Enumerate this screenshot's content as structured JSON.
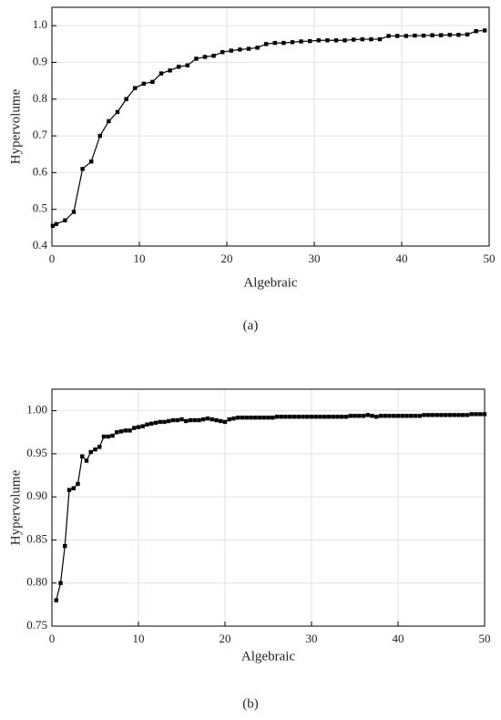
{
  "chart_data": [
    {
      "type": "line",
      "xlabel": "Algebraic",
      "ylabel": "Hypervolume",
      "caption": "(a)",
      "color": "#000000",
      "grid": true,
      "xlim": [
        0,
        50
      ],
      "ylim": [
        0.4,
        1.05
      ],
      "xticks": [
        0,
        10,
        20,
        30,
        40,
        50
      ],
      "yticks": [
        0.4,
        0.5,
        0.6,
        0.7,
        0.8,
        0.9,
        {
          "value": 1.0,
          "label": "1.0"
        }
      ],
      "x": [
        0.1,
        0.5,
        1.5,
        2.5,
        3.5,
        4.5,
        5.5,
        6.5,
        7.5,
        8.5,
        9.5,
        10.5,
        11.5,
        12.5,
        13.5,
        14.5,
        15.5,
        16.5,
        17.5,
        18.5,
        19.5,
        20.5,
        21.5,
        22.5,
        23.5,
        24.5,
        25.5,
        26.5,
        27.5,
        28.5,
        29.5,
        30.5,
        31.5,
        32.5,
        33.5,
        34.5,
        35.5,
        36.5,
        37.5,
        38.5,
        39.5,
        40.5,
        41.5,
        42.5,
        43.5,
        44.5,
        45.5,
        46.5,
        47.5,
        48.5,
        49.5
      ],
      "values": [
        0.455,
        0.46,
        0.47,
        0.493,
        0.61,
        0.63,
        0.7,
        0.74,
        0.765,
        0.8,
        0.83,
        0.842,
        0.847,
        0.87,
        0.878,
        0.888,
        0.892,
        0.91,
        0.915,
        0.918,
        0.928,
        0.932,
        0.935,
        0.937,
        0.94,
        0.95,
        0.953,
        0.953,
        0.955,
        0.957,
        0.958,
        0.96,
        0.96,
        0.96,
        0.96,
        0.962,
        0.963,
        0.963,
        0.963,
        0.972,
        0.972,
        0.972,
        0.973,
        0.973,
        0.974,
        0.974,
        0.975,
        0.975,
        0.976,
        0.985,
        0.987
      ]
    },
    {
      "type": "line",
      "xlabel": "Algebraic",
      "ylabel": "Hypervolume",
      "caption": "(b)",
      "color": "#000000",
      "grid": true,
      "xlim": [
        0,
        50
      ],
      "ylim": [
        0.75,
        1.025
      ],
      "xticks": [
        0,
        10,
        20,
        30,
        40,
        50
      ],
      "yticks": [
        0.75,
        {
          "value": 0.8,
          "label": "0.80"
        },
        0.85,
        {
          "value": 0.9,
          "label": "0.90"
        },
        0.95,
        {
          "value": 1.0,
          "label": "1.00"
        }
      ],
      "x": [
        0.5,
        1,
        1.5,
        2,
        2.5,
        3,
        3.5,
        4,
        4.5,
        5,
        5.5,
        6,
        6.5,
        7,
        7.5,
        8,
        8.5,
        9,
        9.5,
        10,
        10.5,
        11,
        11.5,
        12,
        12.5,
        13,
        13.5,
        14,
        14.5,
        15,
        15.5,
        16,
        16.5,
        17,
        17.5,
        18,
        18.5,
        19,
        19.5,
        20,
        20.5,
        21,
        21.5,
        22,
        22.5,
        23,
        23.5,
        24,
        24.5,
        25,
        25.5,
        26,
        26.5,
        27,
        27.5,
        28,
        28.5,
        29,
        29.5,
        30,
        30.5,
        31,
        31.5,
        32,
        32.5,
        33,
        33.5,
        34,
        34.5,
        35,
        35.5,
        36,
        36.5,
        37,
        37.5,
        38,
        38.5,
        39,
        39.5,
        40,
        40.5,
        41,
        41.5,
        42,
        42.5,
        43,
        43.5,
        44,
        44.5,
        45,
        45.5,
        46,
        46.5,
        47,
        47.5,
        48,
        48.5,
        49,
        49.5,
        50
      ],
      "values": [
        0.78,
        0.8,
        0.843,
        0.908,
        0.91,
        0.915,
        0.947,
        0.942,
        0.952,
        0.955,
        0.958,
        0.97,
        0.97,
        0.971,
        0.975,
        0.976,
        0.977,
        0.977,
        0.98,
        0.981,
        0.982,
        0.984,
        0.985,
        0.986,
        0.987,
        0.987,
        0.988,
        0.989,
        0.989,
        0.99,
        0.988,
        0.989,
        0.989,
        0.989,
        0.99,
        0.991,
        0.99,
        0.989,
        0.988,
        0.987,
        0.99,
        0.991,
        0.992,
        0.992,
        0.992,
        0.992,
        0.992,
        0.992,
        0.992,
        0.992,
        0.992,
        0.993,
        0.993,
        0.993,
        0.993,
        0.993,
        0.993,
        0.993,
        0.993,
        0.993,
        0.993,
        0.993,
        0.993,
        0.993,
        0.993,
        0.993,
        0.993,
        0.993,
        0.994,
        0.994,
        0.994,
        0.994,
        0.995,
        0.994,
        0.993,
        0.994,
        0.994,
        0.994,
        0.994,
        0.994,
        0.994,
        0.994,
        0.994,
        0.994,
        0.994,
        0.995,
        0.995,
        0.995,
        0.995,
        0.995,
        0.995,
        0.995,
        0.995,
        0.995,
        0.995,
        0.995,
        0.996,
        0.996,
        0.996,
        0.996
      ]
    }
  ]
}
